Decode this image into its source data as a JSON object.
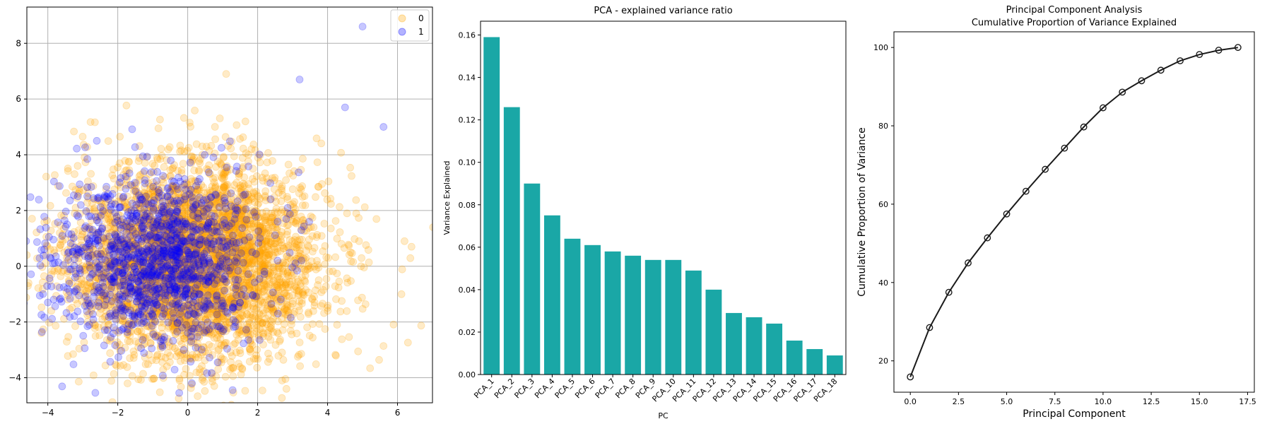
{
  "chart_data": [
    {
      "type": "scatter",
      "title": "",
      "xlabel": "",
      "ylabel": "",
      "xlim": [
        -4.6,
        7.0
      ],
      "ylim": [
        -4.9,
        9.3
      ],
      "xticks": [
        -4,
        -2,
        0,
        2,
        4,
        6
      ],
      "yticks": [
        -4,
        -2,
        0,
        2,
        4,
        6,
        8
      ],
      "grid": true,
      "legend": "top-right",
      "marker_alpha": 0.22,
      "series": [
        {
          "name": "0",
          "color": "#ffa500",
          "count": 4200,
          "center": [
            0.2,
            0.2
          ],
          "spread": [
            1.8,
            1.7
          ],
          "points": [
            [
              6.2,
              0.9
            ],
            [
              6.4,
              0.7
            ],
            [
              -3.9,
              -1.6
            ],
            [
              1.1,
              6.9
            ],
            [
              2.7,
              -4.1
            ],
            [
              4.9,
              0.9
            ]
          ]
        },
        {
          "name": "1",
          "color": "#0000ff",
          "count": 1300,
          "center": [
            -0.9,
            0.2
          ],
          "spread": [
            1.5,
            1.5
          ],
          "points": [
            [
              5.0,
              8.6
            ],
            [
              3.2,
              6.7
            ],
            [
              -4.0,
              -1.3
            ],
            [
              5.6,
              5.0
            ],
            [
              4.5,
              5.7
            ],
            [
              -2.6,
              4.5
            ]
          ]
        }
      ]
    },
    {
      "type": "bar",
      "title": "PCA - explained variance ratio",
      "xlabel": "PC",
      "ylabel": "Variance Explained",
      "ylim": [
        0,
        0.1665
      ],
      "yticks": [
        0.0,
        0.02,
        0.04,
        0.06,
        0.08,
        0.1,
        0.12,
        0.14,
        0.16
      ],
      "ytick_labels": [
        "0.00",
        "0.02",
        "0.04",
        "0.06",
        "0.08",
        "0.10",
        "0.12",
        "0.14",
        "0.16"
      ],
      "color": "#1aa7a6",
      "categories": [
        "PCA_1",
        "PCA_2",
        "PCA_3",
        "PCA_4",
        "PCA_5",
        "PCA_6",
        "PCA_7",
        "PCA_8",
        "PCA_9",
        "PCA_10",
        "PCA_11",
        "PCA_12",
        "PCA_13",
        "PCA_14",
        "PCA_15",
        "PCA_16",
        "PCA_17",
        "PCA_18"
      ],
      "values": [
        0.159,
        0.126,
        0.09,
        0.075,
        0.064,
        0.061,
        0.058,
        0.056,
        0.054,
        0.054,
        0.049,
        0.04,
        0.029,
        0.027,
        0.024,
        0.016,
        0.012,
        0.009
      ]
    },
    {
      "type": "line",
      "title": "Principal Component Analysis",
      "subtitle": "Cumulative Proportion of Variance Explained",
      "xlabel": "Principal Component",
      "ylabel": "Cumulative Proportion of Variance",
      "xlim": [
        -0.85,
        17.85
      ],
      "ylim": [
        12.0,
        104.0
      ],
      "xticks": [
        0.0,
        2.5,
        5.0,
        7.5,
        10.0,
        12.5,
        15.0,
        17.5
      ],
      "xtick_labels": [
        "0.0",
        "2.5",
        "5.0",
        "7.5",
        "10.0",
        "12.5",
        "15.0",
        "17.5"
      ],
      "yticks": [
        20,
        40,
        60,
        80,
        100
      ],
      "color": "#1a1a1a",
      "x": [
        0,
        1,
        2,
        3,
        4,
        5,
        6,
        7,
        8,
        9,
        10,
        11,
        12,
        13,
        14,
        15,
        16,
        17
      ],
      "y": [
        15.9,
        28.5,
        37.5,
        45.0,
        51.4,
        57.5,
        63.3,
        68.9,
        74.3,
        79.7,
        84.6,
        88.6,
        91.5,
        94.2,
        96.6,
        98.2,
        99.3,
        100.0
      ]
    }
  ]
}
